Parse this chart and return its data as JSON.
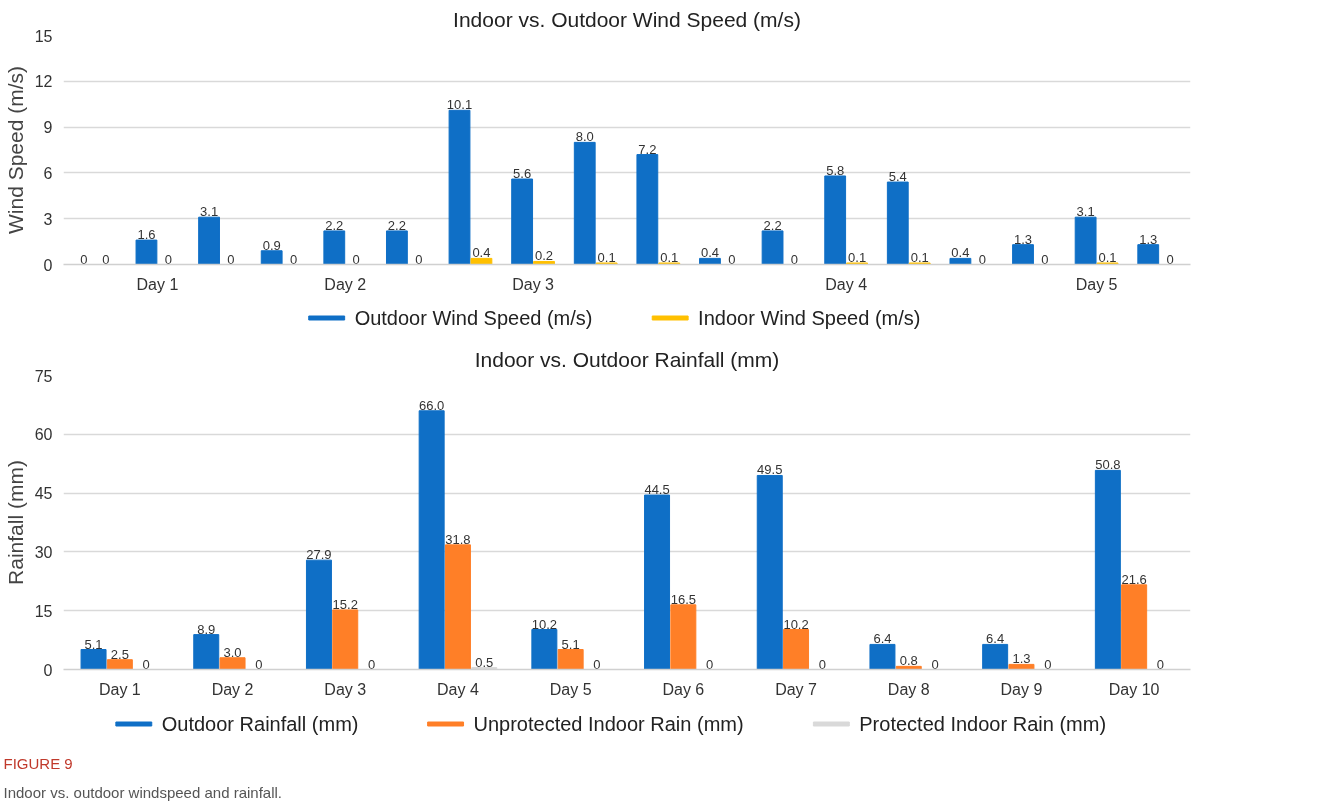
{
  "chart_data": [
    {
      "type": "bar",
      "title": "Indoor vs. Outdoor Wind Speed (m/s)",
      "ylabel": "Wind Speed (m/s)",
      "categories": [
        null,
        "Day 1",
        null,
        null,
        "Day 2",
        null,
        null,
        "Day 3",
        null,
        null,
        null,
        null,
        "Day 4",
        null,
        null,
        null,
        "Day 5",
        null
      ],
      "ylim": [
        0,
        15
      ],
      "yticks": [
        0,
        3,
        6,
        9,
        12,
        15
      ],
      "series": [
        {
          "name": "Outdoor Wind Speed (m/s)",
          "color": "#0f6fc6",
          "values": [
            0,
            1.6,
            3.1,
            0.9,
            2.2,
            2.2,
            10.1,
            5.6,
            8.0,
            7.2,
            0.4,
            2.2,
            5.8,
            5.4,
            0.4,
            1.3,
            3.1,
            1.3
          ],
          "value_labels": [
            "0",
            "1.6",
            "3.1",
            "0.9",
            "2.2",
            "2.2",
            "10.1",
            "5.6",
            "8.0",
            "7.2",
            "0.4",
            "2.2",
            "5.8",
            "5.4",
            "0.4",
            "1.3",
            "3.1",
            "1.3"
          ]
        },
        {
          "name": "Indoor Wind Speed (m/s)",
          "color": "#ffc000",
          "values": [
            0,
            0,
            0,
            0,
            0,
            0,
            0.4,
            0.2,
            0.1,
            0.1,
            0,
            0,
            0.1,
            0.1,
            0,
            0,
            0.1,
            0
          ],
          "value_labels": [
            "0",
            "0",
            "0",
            "0",
            "0",
            "0",
            "0.4",
            "0.2",
            "0.1",
            "0.1",
            "0",
            "0",
            "0.1",
            "0.1",
            "0",
            "0",
            "0.1",
            "0"
          ]
        }
      ],
      "grid": "y",
      "legend": "bottom"
    },
    {
      "type": "bar",
      "title": "Indoor vs. Outdoor Rainfall (mm)",
      "ylabel": "Rainfall (mm)",
      "categories": [
        "Day 1",
        "Day 2",
        "Day 3",
        "Day 4",
        "Day 5",
        "Day 6",
        "Day 7",
        "Day 8",
        "Day 9",
        "Day 10"
      ],
      "ylim": [
        0,
        75
      ],
      "yticks": [
        0,
        15,
        30,
        45,
        60,
        75
      ],
      "series": [
        {
          "name": "Outdoor Rainfall (mm)",
          "color": "#0f6fc6",
          "values": [
            5.1,
            8.9,
            27.9,
            66.0,
            10.2,
            44.5,
            49.5,
            6.4,
            6.4,
            50.8
          ],
          "value_labels": [
            "5.1",
            "8.9",
            "27.9",
            "66.0",
            "10.2",
            "44.5",
            "49.5",
            "6.4",
            "6.4",
            "50.8"
          ]
        },
        {
          "name": "Unprotected Indoor Rain (mm)",
          "color": "#ff7f27",
          "values": [
            2.5,
            3.0,
            15.2,
            31.8,
            5.1,
            16.5,
            10.2,
            0.8,
            1.3,
            21.6
          ],
          "value_labels": [
            "2.5",
            "3.0",
            "15.2",
            "31.8",
            "5.1",
            "16.5",
            "10.2",
            "0.8",
            "1.3",
            "21.6"
          ]
        },
        {
          "name": "Protected Indoor Rain (mm)",
          "color": "#d9d9d9",
          "values": [
            0,
            0,
            0,
            0.5,
            0,
            0,
            0,
            0,
            0,
            0
          ],
          "value_labels": [
            "0",
            "0",
            "0",
            "0.5",
            "0",
            "0",
            "0",
            "0",
            "0",
            "0"
          ]
        }
      ],
      "grid": "y",
      "legend": "bottom",
      "annotations": [
        "FIGURE 9",
        "Indoor vs. outdoor windspeed and rainfall."
      ]
    }
  ]
}
